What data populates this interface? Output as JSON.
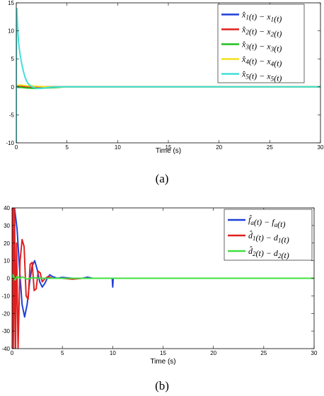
{
  "chart_data": [
    {
      "type": "line",
      "caption": "(a)",
      "xlabel": "Time (s)",
      "ylabel": "",
      "xlim": [
        0,
        30
      ],
      "ylim": [
        -10,
        15
      ],
      "xticks": [
        0,
        5,
        10,
        15,
        20,
        25,
        30
      ],
      "yticks": [
        -10,
        -5,
        0,
        5,
        10,
        15
      ],
      "grid": false,
      "legend_position": "top-right",
      "series": [
        {
          "name": "x̂1(t) − x1(t)",
          "color": "#1f3fd8",
          "x": [
            0,
            0.3,
            1,
            2,
            5,
            10,
            20,
            30
          ],
          "y": [
            0,
            -0.1,
            0,
            0,
            0,
            0,
            0,
            0
          ]
        },
        {
          "name": "x̂2(t) − x2(t)",
          "color": "#e02020",
          "x": [
            0,
            0.3,
            1,
            2,
            5,
            10,
            20,
            30
          ],
          "y": [
            0,
            0.1,
            0,
            0,
            0,
            0,
            0,
            0
          ]
        },
        {
          "name": "x̂3(t) − x3(t)",
          "color": "#20c020",
          "x": [
            0,
            0.5,
            1,
            2,
            3,
            4,
            5,
            10,
            20,
            30
          ],
          "y": [
            0,
            -0.1,
            -0.2,
            -0.3,
            -0.2,
            -0.1,
            0,
            0,
            0,
            0
          ]
        },
        {
          "name": "x̂4(t) − x4(t)",
          "color": "#f0e020",
          "x": [
            0,
            0.5,
            1,
            2,
            3,
            4,
            30
          ],
          "y": [
            0.3,
            0.3,
            0.2,
            0.1,
            0,
            0,
            0
          ]
        },
        {
          "name": "x̂5(t) − x5(t)",
          "color": "#40e0d8",
          "x": [
            0,
            0.02,
            0.05,
            0.1,
            0.15,
            0.25,
            0.4,
            0.55,
            0.7,
            0.85,
            1.0,
            1.2,
            1.5,
            1.8,
            2.2,
            2.6,
            3.0,
            3.5,
            4.0,
            5,
            10,
            20,
            30
          ],
          "y": [
            -10,
            13.5,
            14,
            12,
            10,
            7.5,
            5.5,
            4,
            2.8,
            1.8,
            1.1,
            0.5,
            0.1,
            -0.2,
            -0.3,
            -0.25,
            -0.15,
            -0.05,
            0,
            0,
            0,
            0,
            0
          ]
        }
      ]
    },
    {
      "type": "line",
      "caption": "(b)",
      "xlabel": "Time (s)",
      "ylabel": "",
      "xlim": [
        0,
        30
      ],
      "ylim": [
        -40,
        40
      ],
      "xticks": [
        0,
        5,
        10,
        15,
        20,
        25,
        30
      ],
      "yticks": [
        -40,
        -30,
        -20,
        -10,
        0,
        10,
        20,
        30,
        40
      ],
      "grid": false,
      "legend_position": "top-right",
      "series": [
        {
          "name": "f̂a(t) − fa(t)",
          "color": "#1f3fd8",
          "x": [
            0,
            0.1,
            0.25,
            0.5,
            0.75,
            1.0,
            1.25,
            1.5,
            1.75,
            2.0,
            2.25,
            2.5,
            2.75,
            3.0,
            3.25,
            3.5,
            3.75,
            4.0,
            4.5,
            5.0,
            6,
            7,
            7.5,
            8,
            9,
            9.95,
            10.0,
            10.05,
            10.3,
            12,
            20,
            30
          ],
          "y": [
            0,
            40,
            40,
            28,
            5,
            -15,
            -22,
            -15,
            -2,
            7,
            10,
            5,
            -2,
            -5,
            -3,
            0,
            2,
            1,
            0,
            0.5,
            0,
            0,
            0.6,
            0,
            0,
            0,
            -5,
            0,
            0,
            0,
            0,
            0
          ]
        },
        {
          "name": "d̂1(t) − d1(t)",
          "color": "#e02020",
          "x": [
            0,
            0.08,
            0.16,
            0.25,
            0.35,
            0.45,
            0.6,
            0.8,
            1.0,
            1.2,
            1.4,
            1.6,
            1.8,
            2.0,
            2.2,
            2.4,
            2.6,
            2.8,
            3.0,
            3.3,
            3.6,
            4.0,
            5,
            6,
            7,
            8,
            10,
            20,
            30
          ],
          "y": [
            -40,
            40,
            -40,
            40,
            -40,
            20,
            -40,
            10,
            22,
            18,
            -10,
            -12,
            8,
            9,
            -7,
            -6,
            4,
            3,
            -2,
            0,
            1,
            0,
            0,
            -0.5,
            0,
            0,
            0,
            0,
            0
          ]
        },
        {
          "name": "d̂2(t) − d2(t)",
          "color": "#40e040",
          "x": [
            0,
            0.1,
            0.3,
            0.5,
            0.8,
            1.0,
            1.5,
            2.0,
            3,
            4,
            10,
            20,
            30
          ],
          "y": [
            0,
            2,
            -1,
            1,
            0,
            0.8,
            -0.5,
            0.3,
            0,
            0,
            0,
            0,
            0
          ]
        }
      ]
    }
  ]
}
